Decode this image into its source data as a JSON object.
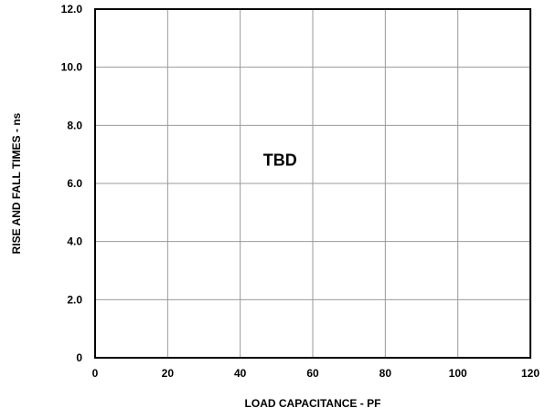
{
  "chart_data": {
    "type": "line",
    "title": "",
    "xlabel": "LOAD CAPACITANCE - PF",
    "ylabel": "RISE AND FALL TIMES - ns",
    "xlim": [
      0,
      120
    ],
    "ylim": [
      0,
      12
    ],
    "x_ticks": [
      0,
      20,
      40,
      60,
      80,
      100,
      120
    ],
    "x_tick_labels": [
      "0",
      "20",
      "40",
      "60",
      "80",
      "100",
      "120"
    ],
    "y_ticks": [
      0,
      2,
      4,
      6,
      8,
      10,
      12
    ],
    "y_tick_labels": [
      "0",
      "2.0",
      "4.0",
      "6.0",
      "8.0",
      "10.0",
      "12.0"
    ],
    "grid": true,
    "series": [],
    "annotations": [
      {
        "text": "TBD",
        "x": 51,
        "y": 6.8
      }
    ]
  },
  "colors": {
    "grid": "#999999",
    "frame": "#000000",
    "text": "#000000",
    "background": "#ffffff"
  }
}
